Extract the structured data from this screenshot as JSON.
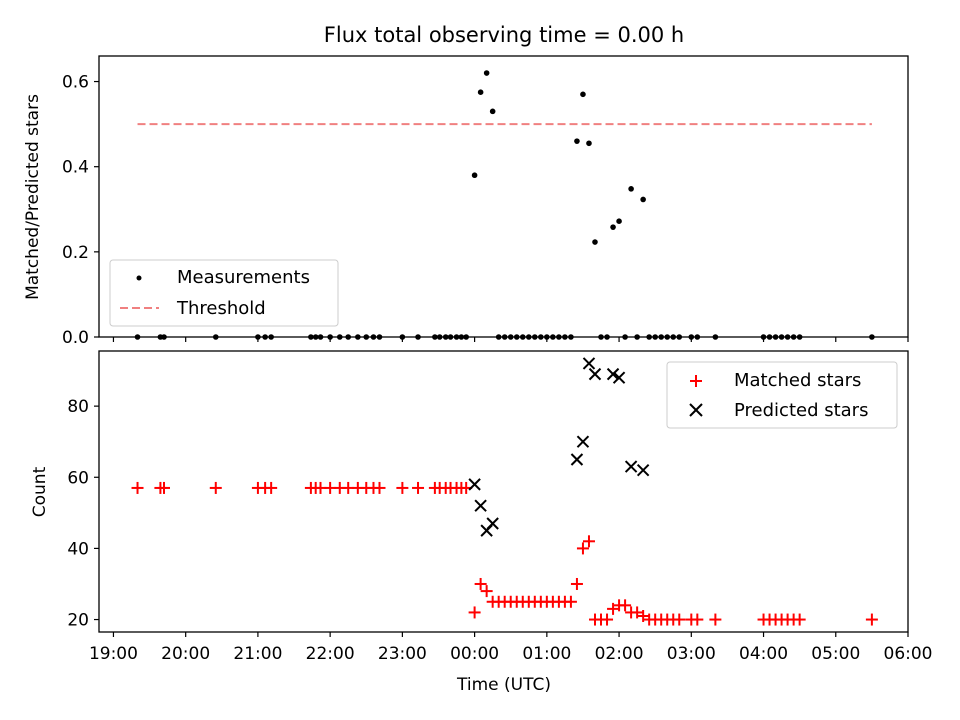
{
  "chart_data": [
    {
      "type": "scatter",
      "title": "Flux total observing time = 0.00 h",
      "xlabel": "",
      "ylabel": "Matched/Predicted stars",
      "xlim": [
        "18:48",
        "06:00"
      ],
      "ylim": [
        0,
        0.66
      ],
      "x_ticks": [
        "19:00",
        "20:00",
        "21:00",
        "22:00",
        "23:00",
        "00:00",
        "01:00",
        "02:00",
        "03:00",
        "04:00",
        "05:00",
        "06:00"
      ],
      "y_ticks": [
        "0.0",
        "0.2",
        "0.4",
        "0.6"
      ],
      "legend": {
        "position": "lower-left",
        "entries": [
          "Measurements",
          "Threshold"
        ]
      },
      "threshold": {
        "name": "Threshold",
        "value": 0.5,
        "x_start": "19:20",
        "x_end": "05:30",
        "color": "#f08080",
        "style": "dashed"
      },
      "series": [
        {
          "name": "Measurements",
          "marker": "dot",
          "color": "#000000",
          "points": [
            [
              "19:20",
              0
            ],
            [
              "19:39",
              0
            ],
            [
              "19:42",
              0
            ],
            [
              "20:25",
              0
            ],
            [
              "21:00",
              0
            ],
            [
              "21:06",
              0
            ],
            [
              "21:11",
              0
            ],
            [
              "21:44",
              0
            ],
            [
              "21:48",
              0
            ],
            [
              "21:52",
              0
            ],
            [
              "22:00",
              0
            ],
            [
              "22:08",
              0
            ],
            [
              "22:15",
              0
            ],
            [
              "22:23",
              0
            ],
            [
              "22:30",
              0
            ],
            [
              "22:36",
              0
            ],
            [
              "22:41",
              0
            ],
            [
              "23:00",
              0
            ],
            [
              "23:13",
              0
            ],
            [
              "23:27",
              0
            ],
            [
              "23:31",
              0
            ],
            [
              "23:36",
              0
            ],
            [
              "23:40",
              0
            ],
            [
              "23:45",
              0
            ],
            [
              "23:49",
              0
            ],
            [
              "23:53",
              0
            ],
            [
              "00:00",
              0.38
            ],
            [
              "00:05",
              0.575
            ],
            [
              "00:10",
              0.62
            ],
            [
              "00:15",
              0.53
            ],
            [
              "00:20",
              0
            ],
            [
              "00:25",
              0
            ],
            [
              "00:30",
              0
            ],
            [
              "00:35",
              0
            ],
            [
              "00:40",
              0
            ],
            [
              "00:45",
              0
            ],
            [
              "00:50",
              0
            ],
            [
              "00:55",
              0
            ],
            [
              "01:00",
              0
            ],
            [
              "01:05",
              0
            ],
            [
              "01:10",
              0
            ],
            [
              "01:15",
              0
            ],
            [
              "01:20",
              0
            ],
            [
              "01:25",
              0.46
            ],
            [
              "01:30",
              0.57
            ],
            [
              "01:35",
              0.455
            ],
            [
              "01:40",
              0.223
            ],
            [
              "01:45",
              0
            ],
            [
              "01:50",
              0
            ],
            [
              "01:55",
              0.258
            ],
            [
              "02:00",
              0.272
            ],
            [
              "02:05",
              0
            ],
            [
              "02:10",
              0.348
            ],
            [
              "02:15",
              0
            ],
            [
              "02:20",
              0.323
            ],
            [
              "02:25",
              0
            ],
            [
              "02:30",
              0
            ],
            [
              "02:35",
              0
            ],
            [
              "02:40",
              0
            ],
            [
              "02:45",
              0
            ],
            [
              "02:50",
              0
            ],
            [
              "03:00",
              0
            ],
            [
              "03:05",
              0
            ],
            [
              "03:20",
              0
            ],
            [
              "04:00",
              0
            ],
            [
              "04:05",
              0
            ],
            [
              "04:10",
              0
            ],
            [
              "04:15",
              0
            ],
            [
              "04:20",
              0
            ],
            [
              "04:25",
              0
            ],
            [
              "04:30",
              0
            ],
            [
              "05:30",
              0
            ]
          ]
        }
      ]
    },
    {
      "type": "scatter",
      "title": "",
      "xlabel": "Time (UTC)",
      "ylabel": "Count",
      "xlim": [
        "18:48",
        "06:00"
      ],
      "ylim": [
        16.5,
        95.5
      ],
      "x_ticks": [
        "19:00",
        "20:00",
        "21:00",
        "22:00",
        "23:00",
        "00:00",
        "01:00",
        "02:00",
        "03:00",
        "04:00",
        "05:00",
        "06:00"
      ],
      "y_ticks": [
        "20",
        "40",
        "60",
        "80"
      ],
      "legend": {
        "position": "upper-right",
        "entries": [
          "Matched stars",
          "Predicted stars"
        ]
      },
      "series": [
        {
          "name": "Matched stars",
          "marker": "plus",
          "color": "#ff0000",
          "points": [
            [
              "19:20",
              57
            ],
            [
              "19:39",
              57
            ],
            [
              "19:42",
              57
            ],
            [
              "20:25",
              57
            ],
            [
              "21:00",
              57
            ],
            [
              "21:06",
              57
            ],
            [
              "21:11",
              57
            ],
            [
              "21:44",
              57
            ],
            [
              "21:48",
              57
            ],
            [
              "21:52",
              57
            ],
            [
              "22:00",
              57
            ],
            [
              "22:08",
              57
            ],
            [
              "22:15",
              57
            ],
            [
              "22:23",
              57
            ],
            [
              "22:30",
              57
            ],
            [
              "22:36",
              57
            ],
            [
              "22:41",
              57
            ],
            [
              "23:00",
              57
            ],
            [
              "23:13",
              57
            ],
            [
              "23:27",
              57
            ],
            [
              "23:31",
              57
            ],
            [
              "23:36",
              57
            ],
            [
              "23:40",
              57
            ],
            [
              "23:45",
              57
            ],
            [
              "23:49",
              57
            ],
            [
              "23:53",
              57
            ],
            [
              "00:00",
              22
            ],
            [
              "00:05",
              30
            ],
            [
              "00:10",
              28
            ],
            [
              "00:15",
              25
            ],
            [
              "00:20",
              25
            ],
            [
              "00:25",
              25
            ],
            [
              "00:30",
              25
            ],
            [
              "00:35",
              25
            ],
            [
              "00:40",
              25
            ],
            [
              "00:45",
              25
            ],
            [
              "00:50",
              25
            ],
            [
              "00:55",
              25
            ],
            [
              "01:00",
              25
            ],
            [
              "01:05",
              25
            ],
            [
              "01:10",
              25
            ],
            [
              "01:15",
              25
            ],
            [
              "01:20",
              25
            ],
            [
              "01:25",
              30
            ],
            [
              "01:30",
              40
            ],
            [
              "01:35",
              42
            ],
            [
              "01:40",
              20
            ],
            [
              "01:45",
              20
            ],
            [
              "01:50",
              20
            ],
            [
              "01:55",
              23
            ],
            [
              "02:00",
              24
            ],
            [
              "02:05",
              24
            ],
            [
              "02:10",
              22
            ],
            [
              "02:15",
              22
            ],
            [
              "02:20",
              21
            ],
            [
              "02:25",
              20
            ],
            [
              "02:30",
              20
            ],
            [
              "02:35",
              20
            ],
            [
              "02:40",
              20
            ],
            [
              "02:45",
              20
            ],
            [
              "02:50",
              20
            ],
            [
              "03:00",
              20
            ],
            [
              "03:05",
              20
            ],
            [
              "03:20",
              20
            ],
            [
              "04:00",
              20
            ],
            [
              "04:05",
              20
            ],
            [
              "04:10",
              20
            ],
            [
              "04:15",
              20
            ],
            [
              "04:20",
              20
            ],
            [
              "04:25",
              20
            ],
            [
              "04:30",
              20
            ],
            [
              "05:30",
              20
            ]
          ]
        },
        {
          "name": "Predicted stars",
          "marker": "x",
          "color": "#000000",
          "points": [
            [
              "00:00",
              58
            ],
            [
              "00:05",
              52
            ],
            [
              "00:10",
              45
            ],
            [
              "00:15",
              47
            ],
            [
              "01:25",
              65
            ],
            [
              "01:30",
              70
            ],
            [
              "01:35",
              92
            ],
            [
              "01:40",
              89
            ],
            [
              "01:55",
              89
            ],
            [
              "02:00",
              88
            ],
            [
              "02:10",
              63
            ],
            [
              "02:20",
              62
            ]
          ]
        }
      ]
    }
  ]
}
